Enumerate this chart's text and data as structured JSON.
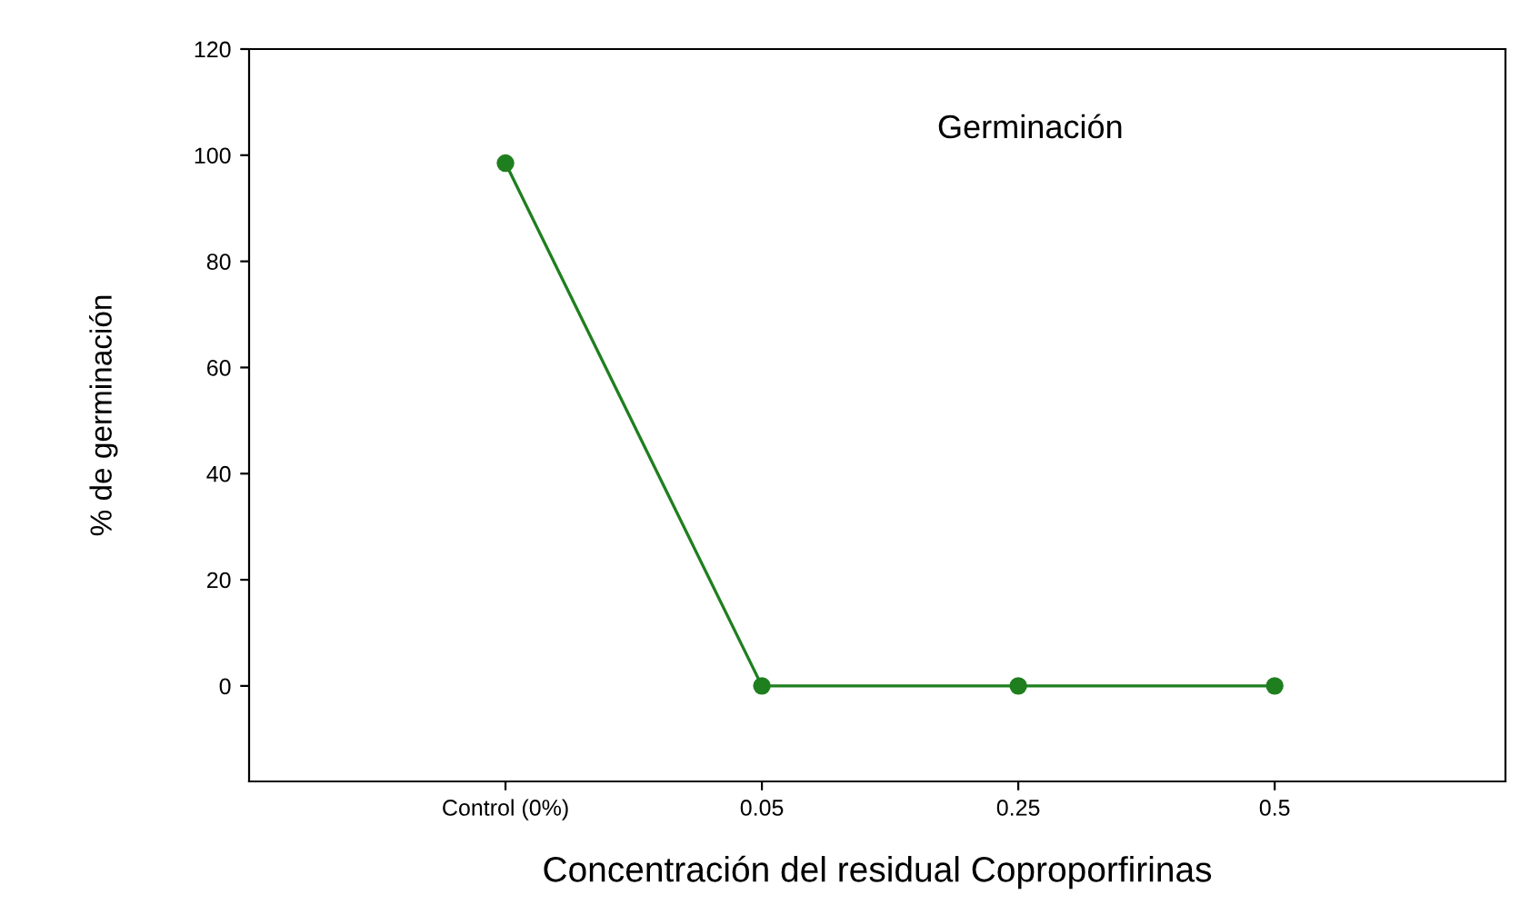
{
  "chart_data": {
    "type": "line",
    "title": "Germinación",
    "xlabel": "Concentración del residual Coproporfirinas",
    "ylabel": "% de germinación",
    "categories": [
      "Control (0%)",
      "0.05",
      "0.25",
      "0.5"
    ],
    "series": [
      {
        "color": "#1f7f1f",
        "values": [
          98.5,
          0,
          0,
          0
        ]
      }
    ],
    "ylim": [
      -18,
      120
    ],
    "yticks": [
      0,
      20,
      40,
      60,
      80,
      100,
      120
    ],
    "marker": "circle",
    "line_style": "solid",
    "grid": false,
    "legend": false
  }
}
